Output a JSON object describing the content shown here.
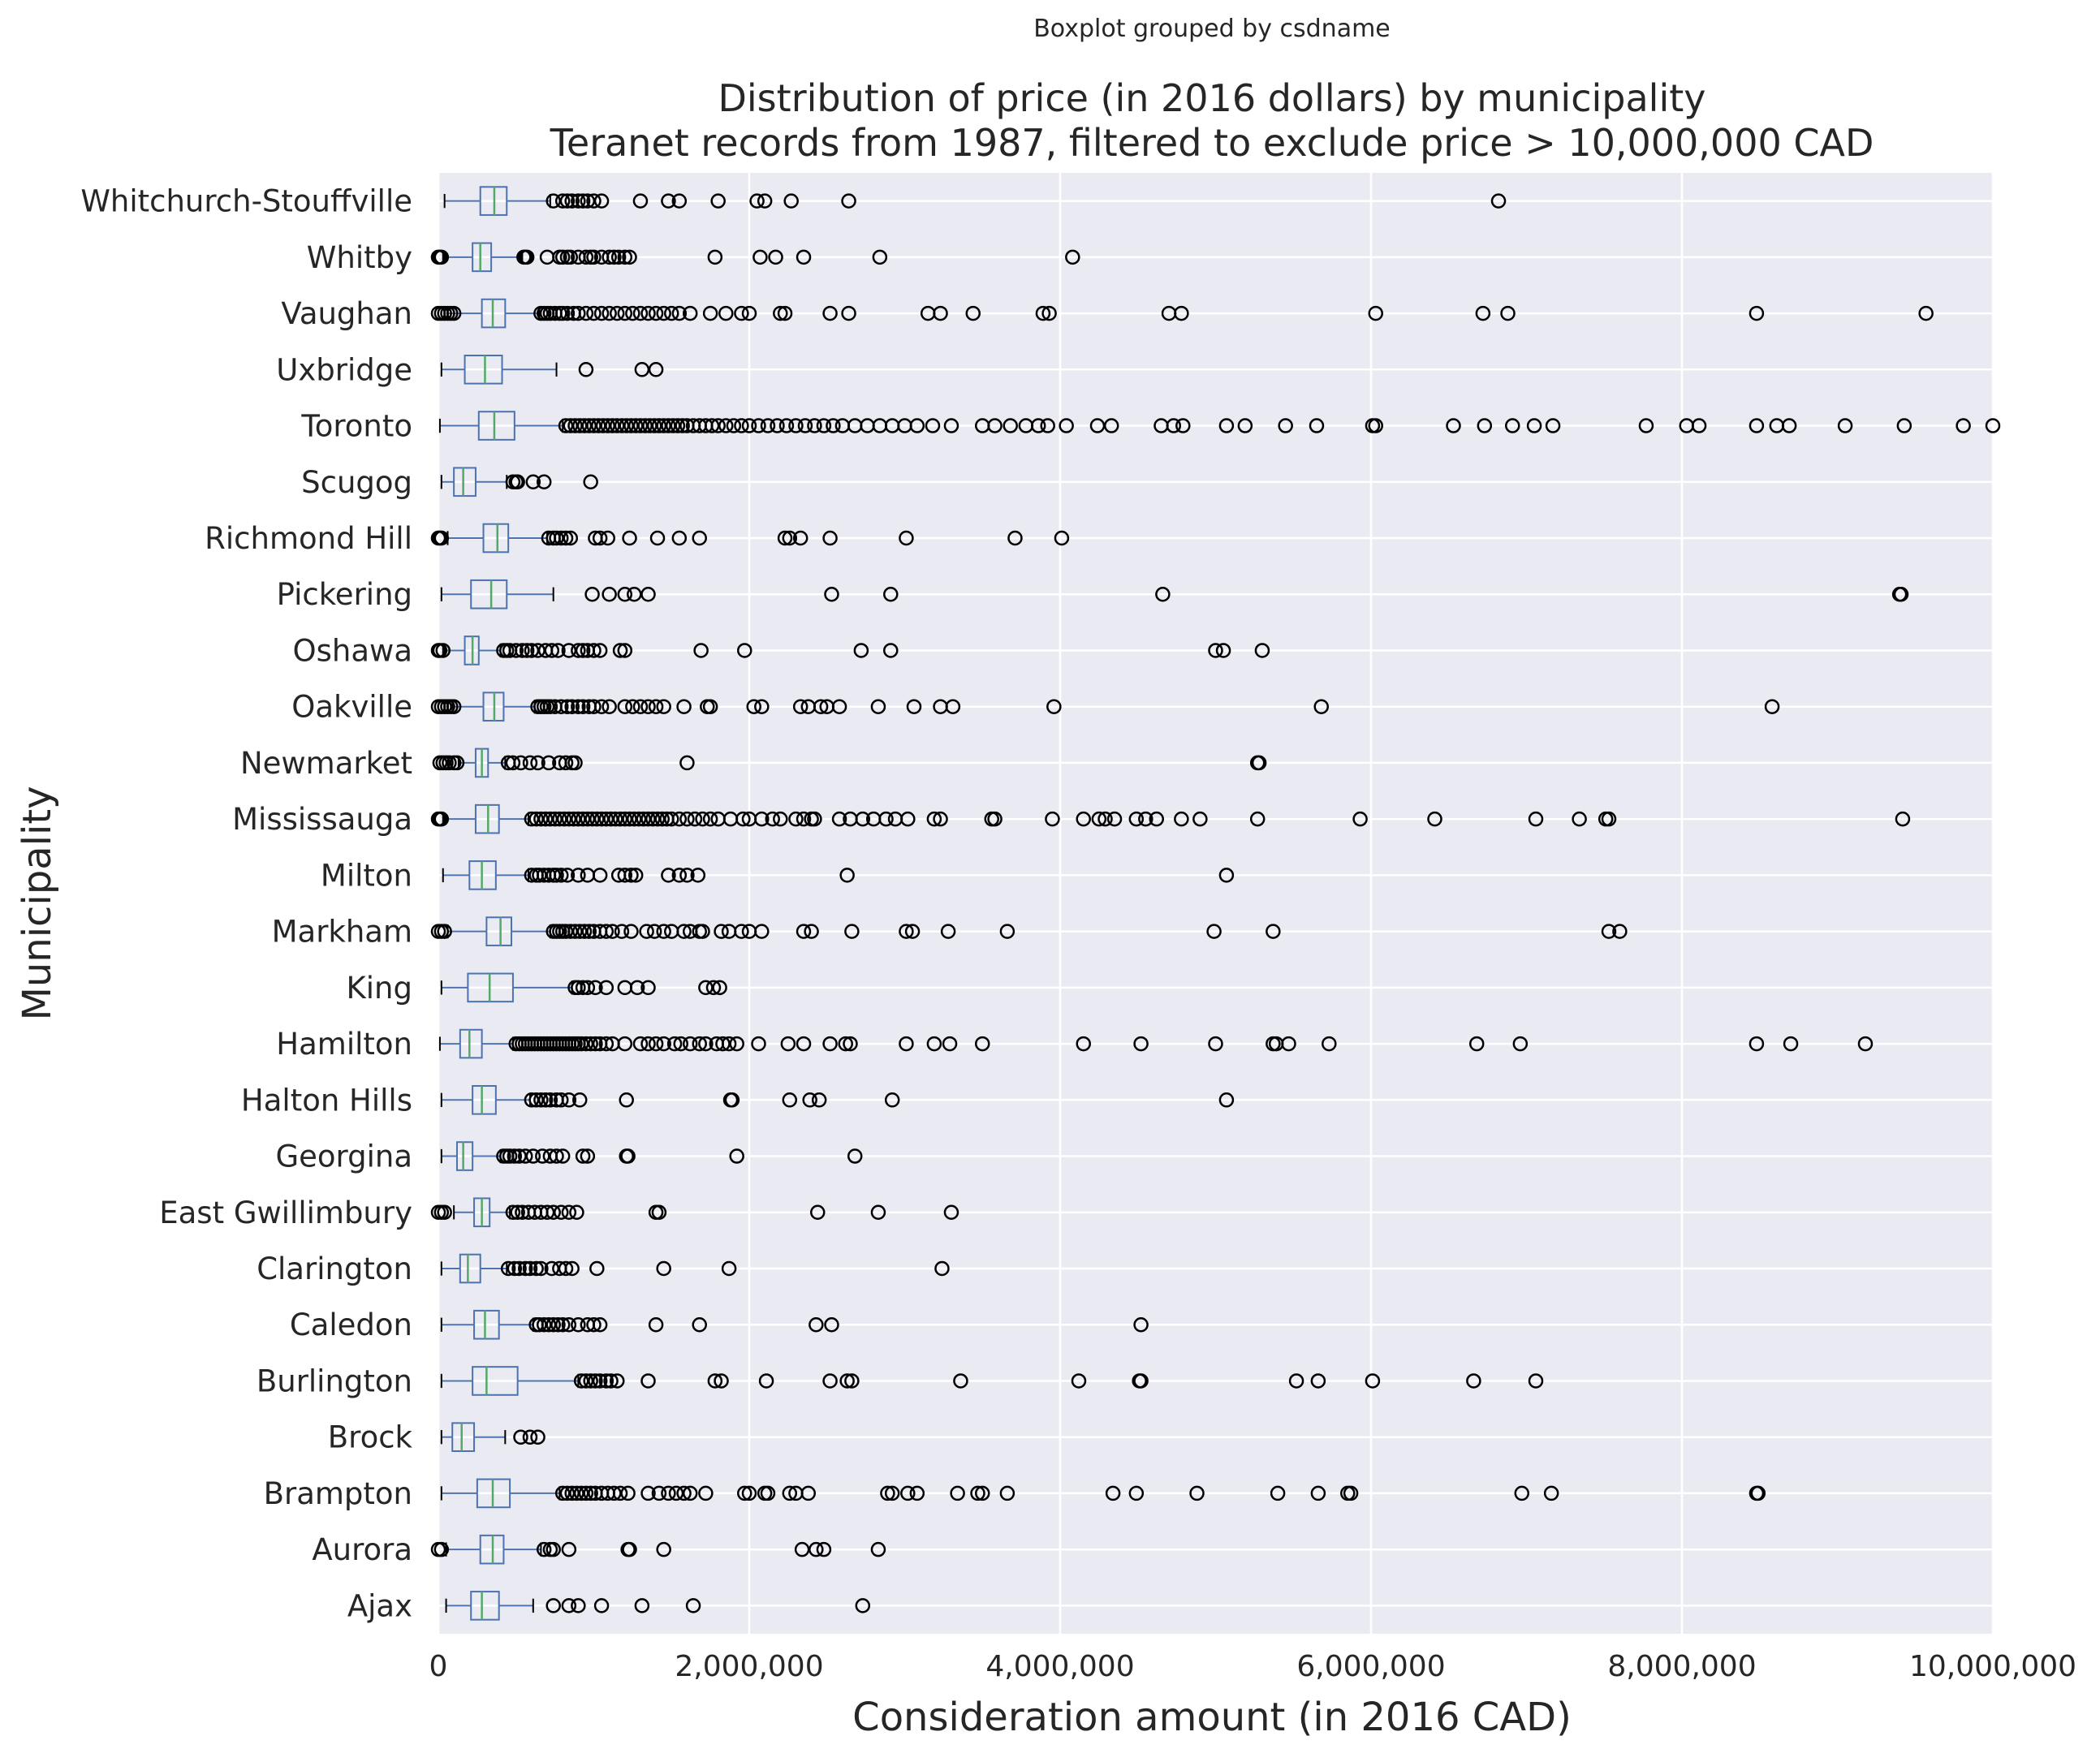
{
  "chart_data": {
    "type": "boxplot",
    "suptitle": "Boxplot grouped by csdname",
    "title_line1": "Distribution of price (in 2016 dollars) by municipality",
    "title_line2": "Teranet records from 1987, filtered to exclude price > 10,000,000 CAD",
    "xlabel": "Consideration amount (in 2016 CAD)",
    "ylabel": "Municipality",
    "xlim": [
      0,
      10000000
    ],
    "x_ticks": [
      0,
      2000000,
      4000000,
      6000000,
      8000000,
      10000000
    ],
    "x_tick_labels": [
      "0",
      "2,000,000",
      "4,000,000",
      "6,000,000",
      "8,000,000",
      "10,000,000"
    ],
    "grid": true,
    "colors": {
      "background": "#eaeaf2",
      "grid": "#ffffff",
      "box": "#4c72b0",
      "median": "#55a868",
      "flier": "#000000"
    },
    "categories": [
      "Whitchurch-Stouffville",
      "Whitby",
      "Vaughan",
      "Uxbridge",
      "Toronto",
      "Scugog",
      "Richmond Hill",
      "Pickering",
      "Oshawa",
      "Oakville",
      "Newmarket",
      "Mississauga",
      "Milton",
      "Markham",
      "King",
      "Hamilton",
      "Halton Hills",
      "Georgina",
      "East Gwillimbury",
      "Clarington",
      "Caledon",
      "Burlington",
      "Brock",
      "Brampton",
      "Aurora",
      "Ajax"
    ],
    "boxes": [
      {
        "name": "Whitchurch-Stouffville",
        "whislo": 40000,
        "q1": 270000,
        "med": 360000,
        "q3": 440000,
        "whishi": 720000,
        "fliers": [
          740000,
          800000,
          830000,
          860000,
          900000,
          930000,
          960000,
          1000000,
          1050000,
          1300000,
          1480000,
          1550000,
          1800000,
          2050000,
          2100000,
          2270000,
          2640000,
          6820000
        ]
      },
      {
        "name": "Whitby",
        "whislo": 30000,
        "q1": 220000,
        "med": 270000,
        "q3": 340000,
        "whishi": 540000,
        "fliers": [
          0,
          10000,
          20000,
          550000,
          560000,
          570000,
          700000,
          780000,
          800000,
          830000,
          850000,
          900000,
          950000,
          980000,
          1000000,
          1050000,
          1100000,
          1130000,
          1160000,
          1200000,
          1230000,
          1780000,
          2070000,
          2170000,
          2350000,
          2840000,
          4080000
        ]
      },
      {
        "name": "Vaughan",
        "whislo": 60000,
        "q1": 280000,
        "med": 350000,
        "q3": 430000,
        "whishi": 650000,
        "fliers": [
          0,
          20000,
          40000,
          60000,
          80000,
          100000,
          660000,
          680000,
          700000,
          720000,
          750000,
          780000,
          800000,
          830000,
          870000,
          900000,
          950000,
          1000000,
          1050000,
          1100000,
          1150000,
          1200000,
          1250000,
          1300000,
          1350000,
          1400000,
          1450000,
          1500000,
          1550000,
          1620000,
          1750000,
          1850000,
          1950000,
          2000000,
          2200000,
          2230000,
          2520000,
          2640000,
          3150000,
          3230000,
          3440000,
          3890000,
          3930000,
          4700000,
          4780000,
          6030000,
          6720000,
          6880000,
          8480000,
          9570000
        ]
      },
      {
        "name": "Uxbridge",
        "whislo": 20000,
        "q1": 170000,
        "med": 300000,
        "q3": 410000,
        "whishi": 760000,
        "fliers": [
          950000,
          1310000,
          1400000
        ]
      },
      {
        "name": "Toronto",
        "whislo": 10000,
        "q1": 260000,
        "med": 360000,
        "q3": 490000,
        "whishi": 800000,
        "fliers": [
          820000,
          850000,
          880000,
          910000,
          940000,
          970000,
          1000000,
          1030000,
          1060000,
          1090000,
          1120000,
          1150000,
          1180000,
          1210000,
          1240000,
          1270000,
          1300000,
          1330000,
          1360000,
          1390000,
          1420000,
          1450000,
          1480000,
          1510000,
          1540000,
          1570000,
          1600000,
          1640000,
          1680000,
          1720000,
          1760000,
          1800000,
          1850000,
          1900000,
          1950000,
          2000000,
          2060000,
          2120000,
          2180000,
          2240000,
          2300000,
          2360000,
          2420000,
          2480000,
          2540000,
          2600000,
          2680000,
          2760000,
          2840000,
          2920000,
          3000000,
          3080000,
          3180000,
          3300000,
          3500000,
          3580000,
          3680000,
          3780000,
          3860000,
          3920000,
          4040000,
          4240000,
          4330000,
          4650000,
          4730000,
          4790000,
          5070000,
          5190000,
          5450000,
          5650000,
          6010000,
          6030000,
          6530000,
          6730000,
          6910000,
          7050000,
          7170000,
          7770000,
          8030000,
          8110000,
          8480000,
          8610000,
          8690000,
          9050000,
          9430000,
          9810000,
          10000000
        ]
      },
      {
        "name": "Scugog",
        "whislo": 20000,
        "q1": 100000,
        "med": 160000,
        "q3": 240000,
        "whishi": 440000,
        "fliers": [
          480000,
          500000,
          510000,
          610000,
          680000,
          980000
        ]
      },
      {
        "name": "Richmond Hill",
        "whislo": 60000,
        "q1": 290000,
        "med": 380000,
        "q3": 450000,
        "whishi": 700000,
        "fliers": [
          0,
          10000,
          20000,
          710000,
          740000,
          760000,
          790000,
          820000,
          850000,
          1010000,
          1040000,
          1090000,
          1230000,
          1410000,
          1550000,
          1680000,
          2230000,
          2260000,
          2330000,
          2520000,
          3010000,
          3710000,
          4010000
        ]
      },
      {
        "name": "Pickering",
        "whislo": 20000,
        "q1": 210000,
        "med": 340000,
        "q3": 440000,
        "whishi": 740000,
        "fliers": [
          990000,
          1100000,
          1200000,
          1260000,
          1350000,
          2530000,
          2910000,
          4660000,
          9400000,
          9410000
        ]
      },
      {
        "name": "Oshawa",
        "whislo": 30000,
        "q1": 170000,
        "med": 220000,
        "q3": 260000,
        "whishi": 400000,
        "fliers": [
          0,
          10000,
          30000,
          420000,
          440000,
          460000,
          500000,
          540000,
          570000,
          600000,
          640000,
          690000,
          730000,
          770000,
          840000,
          900000,
          930000,
          960000,
          1000000,
          1040000,
          1170000,
          1200000,
          1690000,
          1970000,
          2720000,
          2910000,
          5000000,
          5050000,
          5300000
        ]
      },
      {
        "name": "Oakville",
        "whislo": 90000,
        "q1": 290000,
        "med": 360000,
        "q3": 420000,
        "whishi": 620000,
        "fliers": [
          0,
          20000,
          40000,
          60000,
          80000,
          100000,
          640000,
          660000,
          680000,
          700000,
          720000,
          750000,
          790000,
          830000,
          860000,
          900000,
          930000,
          970000,
          1000000,
          1050000,
          1100000,
          1200000,
          1250000,
          1300000,
          1350000,
          1400000,
          1450000,
          1580000,
          1730000,
          1750000,
          2030000,
          2080000,
          2330000,
          2380000,
          2460000,
          2500000,
          2580000,
          2830000,
          3060000,
          3230000,
          3310000,
          3960000,
          5680000,
          8580000
        ]
      },
      {
        "name": "Newmarket",
        "whislo": 130000,
        "q1": 240000,
        "med": 280000,
        "q3": 320000,
        "whishi": 430000,
        "fliers": [
          10000,
          30000,
          50000,
          70000,
          100000,
          120000,
          450000,
          480000,
          530000,
          590000,
          640000,
          710000,
          780000,
          820000,
          860000,
          880000,
          1600000,
          5270000,
          5280000
        ]
      },
      {
        "name": "Mississauga",
        "whislo": 30000,
        "q1": 240000,
        "med": 320000,
        "q3": 390000,
        "whishi": 580000,
        "fliers": [
          0,
          10000,
          20000,
          600000,
          630000,
          660000,
          690000,
          720000,
          750000,
          780000,
          810000,
          840000,
          870000,
          900000,
          930000,
          960000,
          990000,
          1020000,
          1050000,
          1080000,
          1110000,
          1140000,
          1170000,
          1200000,
          1230000,
          1260000,
          1290000,
          1320000,
          1350000,
          1380000,
          1410000,
          1440000,
          1470000,
          1500000,
          1550000,
          1600000,
          1650000,
          1700000,
          1750000,
          1800000,
          1880000,
          1960000,
          2000000,
          2080000,
          2150000,
          2200000,
          2300000,
          2350000,
          2400000,
          2420000,
          2580000,
          2650000,
          2730000,
          2800000,
          2880000,
          2940000,
          3020000,
          3190000,
          3230000,
          3560000,
          3580000,
          3950000,
          4150000,
          4250000,
          4290000,
          4350000,
          4490000,
          4550000,
          4620000,
          4780000,
          4900000,
          5270000,
          5930000,
          6410000,
          7060000,
          7340000,
          7510000,
          7530000,
          9420000
        ]
      },
      {
        "name": "Milton",
        "whislo": 30000,
        "q1": 200000,
        "med": 280000,
        "q3": 370000,
        "whishi": 580000,
        "fliers": [
          600000,
          630000,
          650000,
          680000,
          710000,
          740000,
          760000,
          790000,
          830000,
          900000,
          960000,
          1040000,
          1160000,
          1200000,
          1240000,
          1270000,
          1480000,
          1550000,
          1600000,
          1670000,
          2630000,
          5070000
        ]
      },
      {
        "name": "Markham",
        "whislo": 60000,
        "q1": 310000,
        "med": 400000,
        "q3": 470000,
        "whishi": 720000,
        "fliers": [
          0,
          20000,
          40000,
          740000,
          760000,
          780000,
          800000,
          820000,
          850000,
          880000,
          910000,
          940000,
          970000,
          1000000,
          1040000,
          1080000,
          1120000,
          1180000,
          1240000,
          1340000,
          1390000,
          1450000,
          1500000,
          1580000,
          1620000,
          1680000,
          1700000,
          1820000,
          1870000,
          1950000,
          2000000,
          2080000,
          2350000,
          2400000,
          2660000,
          3010000,
          3050000,
          3280000,
          3660000,
          4990000,
          5370000,
          7530000,
          7600000
        ]
      },
      {
        "name": "King",
        "whislo": 20000,
        "q1": 190000,
        "med": 330000,
        "q3": 480000,
        "whishi": 860000,
        "fliers": [
          880000,
          900000,
          930000,
          960000,
          1010000,
          1080000,
          1200000,
          1280000,
          1350000,
          1720000,
          1770000,
          1810000
        ]
      },
      {
        "name": "Hamilton",
        "whislo": 10000,
        "q1": 140000,
        "med": 200000,
        "q3": 280000,
        "whishi": 480000,
        "fliers": [
          500000,
          520000,
          540000,
          560000,
          580000,
          600000,
          620000,
          640000,
          660000,
          680000,
          700000,
          720000,
          740000,
          760000,
          780000,
          800000,
          820000,
          840000,
          860000,
          880000,
          900000,
          920000,
          950000,
          980000,
          1010000,
          1040000,
          1080000,
          1120000,
          1200000,
          1300000,
          1350000,
          1400000,
          1450000,
          1520000,
          1560000,
          1620000,
          1680000,
          1720000,
          1790000,
          1830000,
          1870000,
          1920000,
          2060000,
          2250000,
          2350000,
          2520000,
          2620000,
          2650000,
          3010000,
          3190000,
          3290000,
          3500000,
          4150000,
          4520000,
          5000000,
          5370000,
          5390000,
          5470000,
          5730000,
          6680000,
          6960000,
          8480000,
          8700000,
          9180000
        ]
      },
      {
        "name": "Halton Hills",
        "whislo": 20000,
        "q1": 220000,
        "med": 280000,
        "q3": 370000,
        "whishi": 590000,
        "fliers": [
          600000,
          630000,
          660000,
          690000,
          720000,
          760000,
          790000,
          840000,
          910000,
          1210000,
          1880000,
          1890000,
          2260000,
          2390000,
          2450000,
          2920000,
          5070000
        ]
      },
      {
        "name": "Georgina",
        "whislo": 20000,
        "q1": 120000,
        "med": 160000,
        "q3": 220000,
        "whishi": 400000,
        "fliers": [
          420000,
          440000,
          460000,
          490000,
          520000,
          560000,
          610000,
          670000,
          720000,
          760000,
          800000,
          930000,
          960000,
          1210000,
          1220000,
          1920000,
          2680000
        ]
      },
      {
        "name": "East Gwillimbury",
        "whislo": 100000,
        "q1": 230000,
        "med": 280000,
        "q3": 330000,
        "whishi": 460000,
        "fliers": [
          0,
          20000,
          40000,
          480000,
          510000,
          540000,
          580000,
          620000,
          660000,
          700000,
          740000,
          790000,
          840000,
          890000,
          1400000,
          1420000,
          2440000,
          2830000,
          3300000
        ]
      },
      {
        "name": "Clarington",
        "whislo": 20000,
        "q1": 140000,
        "med": 190000,
        "q3": 270000,
        "whishi": 440000,
        "fliers": [
          450000,
          490000,
          520000,
          560000,
          590000,
          630000,
          660000,
          730000,
          780000,
          820000,
          860000,
          1020000,
          1450000,
          1870000,
          3240000
        ]
      },
      {
        "name": "Caledon",
        "whislo": 20000,
        "q1": 230000,
        "med": 300000,
        "q3": 390000,
        "whishi": 610000,
        "fliers": [
          630000,
          650000,
          680000,
          710000,
          740000,
          770000,
          800000,
          840000,
          900000,
          960000,
          1000000,
          1040000,
          1400000,
          1680000,
          2430000,
          2530000,
          4520000
        ]
      },
      {
        "name": "Burlington",
        "whislo": 20000,
        "q1": 220000,
        "med": 310000,
        "q3": 510000,
        "whishi": 900000,
        "fliers": [
          920000,
          950000,
          980000,
          1010000,
          1040000,
          1080000,
          1110000,
          1150000,
          1350000,
          1780000,
          1820000,
          2110000,
          2520000,
          2630000,
          2660000,
          3360000,
          4120000,
          4510000,
          4520000,
          5520000,
          5660000,
          6010000,
          6660000,
          7060000
        ]
      },
      {
        "name": "Brock",
        "whislo": 20000,
        "q1": 90000,
        "med": 150000,
        "q3": 230000,
        "whishi": 430000,
        "fliers": [
          530000,
          590000,
          640000
        ]
      },
      {
        "name": "Brampton",
        "whislo": 20000,
        "q1": 250000,
        "med": 350000,
        "q3": 460000,
        "whishi": 780000,
        "fliers": [
          800000,
          830000,
          860000,
          890000,
          920000,
          950000,
          980000,
          1010000,
          1050000,
          1090000,
          1130000,
          1170000,
          1220000,
          1350000,
          1420000,
          1480000,
          1530000,
          1580000,
          1620000,
          1720000,
          1970000,
          2000000,
          2100000,
          2120000,
          2260000,
          2300000,
          2380000,
          2890000,
          2920000,
          3020000,
          3080000,
          3340000,
          3470000,
          3500000,
          3660000,
          4340000,
          4490000,
          4880000,
          5400000,
          5660000,
          5850000,
          5870000,
          6970000,
          7160000,
          8480000,
          8490000
        ]
      },
      {
        "name": "Aurora",
        "whislo": 50000,
        "q1": 270000,
        "med": 350000,
        "q3": 420000,
        "whishi": 660000,
        "fliers": [
          0,
          20000,
          680000,
          720000,
          740000,
          840000,
          1220000,
          1230000,
          1450000,
          2340000,
          2430000,
          2480000,
          2830000
        ]
      },
      {
        "name": "Ajax",
        "whislo": 50000,
        "q1": 210000,
        "med": 280000,
        "q3": 390000,
        "whishi": 610000,
        "fliers": [
          740000,
          840000,
          900000,
          1050000,
          1310000,
          1640000,
          2730000
        ]
      }
    ]
  }
}
